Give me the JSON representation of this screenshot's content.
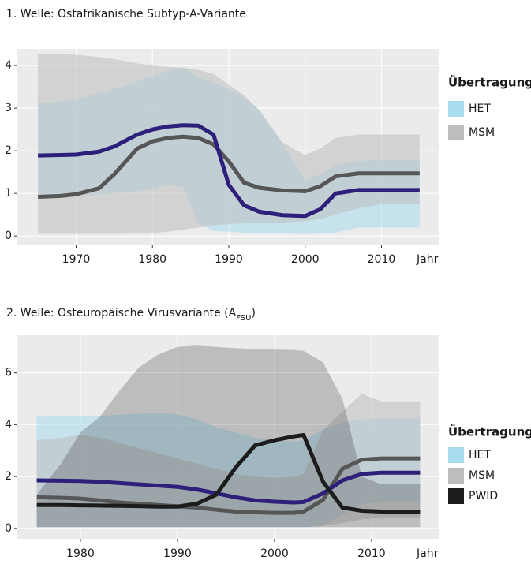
{
  "chart_data": [
    {
      "type": "line",
      "title": "1. Welle: Ostafrikanische Subtyp-A-Variante",
      "xlabel": "Jahr",
      "legend_title": "Übertragung",
      "grid": true,
      "xlim": [
        1962.3,
        2017.6
      ],
      "ylim": [
        -0.2,
        4.39
      ],
      "xticks": [
        1970,
        1980,
        1990,
        2000,
        2010
      ],
      "yticks": [
        0,
        1,
        2,
        3,
        4
      ],
      "x": [
        1965,
        1968,
        1970,
        1973,
        1975,
        1978,
        1980,
        1982,
        1984,
        1986,
        1988,
        1990,
        1992,
        1994,
        1997,
        2000,
        2002,
        2004,
        2007,
        2010,
        2015
      ],
      "series": [
        {
          "name": "HET",
          "color": "#a8dcef",
          "line_color": "#2e1f7a",
          "values": [
            1.89,
            1.9,
            1.91,
            1.98,
            2.1,
            2.38,
            2.5,
            2.57,
            2.6,
            2.59,
            2.38,
            1.2,
            0.72,
            0.57,
            0.49,
            0.47,
            0.63,
            1.0,
            1.08,
            1.08,
            1.08
          ],
          "upper": [
            3.12,
            3.15,
            3.2,
            3.35,
            3.45,
            3.62,
            3.75,
            3.87,
            3.95,
            3.75,
            3.6,
            3.45,
            3.25,
            2.95,
            2.2,
            1.3,
            1.45,
            1.65,
            1.76,
            1.78,
            1.78
          ],
          "lower": [
            0.9,
            0.93,
            0.95,
            0.98,
            1.0,
            1.05,
            1.1,
            1.2,
            1.15,
            0.3,
            0.12,
            0.1,
            0.08,
            0.07,
            0.06,
            0.05,
            0.06,
            0.08,
            0.2,
            0.2,
            0.2
          ]
        },
        {
          "name": "MSM",
          "color": "#bdbdbd",
          "line_color": "#565656",
          "values": [
            0.92,
            0.94,
            0.98,
            1.12,
            1.45,
            2.05,
            2.22,
            2.3,
            2.33,
            2.3,
            2.15,
            1.75,
            1.25,
            1.13,
            1.07,
            1.05,
            1.17,
            1.4,
            1.47,
            1.47,
            1.47
          ],
          "upper": [
            4.28,
            4.27,
            4.25,
            4.2,
            4.15,
            4.05,
            4.0,
            3.97,
            3.95,
            3.9,
            3.8,
            3.55,
            3.3,
            2.95,
            2.2,
            1.9,
            2.05,
            2.3,
            2.38,
            2.38,
            2.38
          ],
          "lower": [
            0.05,
            0.05,
            0.05,
            0.05,
            0.05,
            0.06,
            0.07,
            0.1,
            0.15,
            0.2,
            0.25,
            0.28,
            0.3,
            0.3,
            0.3,
            0.35,
            0.4,
            0.5,
            0.65,
            0.75,
            0.75
          ]
        }
      ]
    },
    {
      "type": "line",
      "title": {
        "text": "2. Welle: Osteuropäische Virusvariante (A",
        "subscript": "FSU",
        "suffix": ")"
      },
      "xlabel": "Jahr",
      "legend_title": "Übertragung",
      "grid": true,
      "xlim": [
        1973.5,
        2017.0
      ],
      "ylim": [
        -0.4,
        7.45
      ],
      "xticks": [
        1980,
        1990,
        2000,
        2010
      ],
      "yticks": [
        0,
        2,
        4,
        6
      ],
      "x": [
        1975.5,
        1978,
        1980,
        1982,
        1984,
        1986,
        1988,
        1990,
        1992,
        1994,
        1996,
        1998,
        2000,
        2002,
        2003,
        2005,
        2007,
        2009,
        2011,
        2015
      ],
      "series": [
        {
          "name": "HET",
          "color": "#a8dcef",
          "line_color": "#2e1f7a",
          "values": [
            1.85,
            1.84,
            1.83,
            1.8,
            1.75,
            1.7,
            1.65,
            1.6,
            1.5,
            1.35,
            1.2,
            1.08,
            1.03,
            1.0,
            1.02,
            1.35,
            1.85,
            2.1,
            2.15,
            2.15
          ],
          "upper": [
            4.3,
            4.32,
            4.33,
            4.35,
            4.38,
            4.42,
            4.45,
            4.4,
            4.2,
            3.9,
            3.7,
            3.5,
            3.4,
            3.35,
            3.4,
            3.8,
            4.1,
            4.2,
            4.25,
            4.25
          ],
          "lower": [
            0.05,
            0.05,
            0.05,
            0.05,
            0.05,
            0.05,
            0.05,
            0.05,
            0.05,
            0.05,
            0.05,
            0.05,
            0.05,
            0.05,
            0.05,
            0.1,
            0.5,
            0.95,
            1.0,
            1.0
          ]
        },
        {
          "name": "MSM",
          "color": "#bdbdbd",
          "line_color": "#565656",
          "values": [
            1.2,
            1.18,
            1.15,
            1.08,
            1.0,
            0.95,
            0.9,
            0.85,
            0.8,
            0.72,
            0.65,
            0.62,
            0.6,
            0.6,
            0.65,
            1.1,
            2.3,
            2.65,
            2.7,
            2.7
          ],
          "upper": [
            3.4,
            3.5,
            3.6,
            3.5,
            3.3,
            3.1,
            2.9,
            2.7,
            2.5,
            2.3,
            2.1,
            2.0,
            1.95,
            2.0,
            2.1,
            3.8,
            4.5,
            5.2,
            4.9,
            4.9
          ],
          "lower": [
            0.05,
            0.05,
            0.05,
            0.05,
            0.05,
            0.05,
            0.05,
            0.05,
            0.05,
            0.05,
            0.05,
            0.05,
            0.05,
            0.05,
            0.05,
            0.1,
            0.2,
            0.35,
            0.4,
            0.4
          ]
        },
        {
          "name": "PWID",
          "color": "#1c1c1c",
          "line_color": "#1c1c1c",
          "values": [
            0.9,
            0.9,
            0.89,
            0.88,
            0.87,
            0.86,
            0.84,
            0.84,
            0.95,
            1.3,
            2.35,
            3.2,
            3.4,
            3.55,
            3.6,
            1.8,
            0.8,
            0.68,
            0.65,
            0.65
          ],
          "upper": [
            1.3,
            2.5,
            3.7,
            4.3,
            5.3,
            6.2,
            6.7,
            7.0,
            7.05,
            7.0,
            6.95,
            6.92,
            6.9,
            6.88,
            6.85,
            6.4,
            5.0,
            2.0,
            1.7,
            1.7
          ],
          "lower": [
            0.05,
            0.05,
            0.05,
            0.05,
            0.05,
            0.05,
            0.05,
            0.05,
            0.05,
            0.05,
            0.05,
            0.05,
            0.05,
            0.05,
            0.05,
            0.05,
            0.05,
            0.05,
            0.05,
            0.05
          ]
        }
      ]
    }
  ]
}
